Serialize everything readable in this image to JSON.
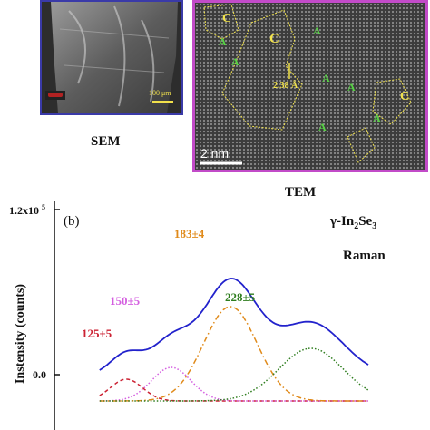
{
  "sem": {
    "caption": "SEM",
    "scale_label": "100 μm"
  },
  "tem": {
    "caption": "TEM",
    "scale_label": "2 nm",
    "d_spacing": "2.38 Å",
    "region_labels": [
      "C",
      "A",
      "C",
      "A",
      "A",
      "A",
      "A",
      "A",
      "C",
      "A"
    ]
  },
  "chart_data": {
    "type": "line",
    "panel_label": "(b)",
    "title": "γ-In2Se3",
    "subtitle": "Raman",
    "ylabel": "Instensity (counts)",
    "yticks": [
      "1.2x10^5",
      "0.0"
    ],
    "peaks": [
      {
        "label": "125±5",
        "color": "#cc2233",
        "center": 125
      },
      {
        "label": "150±5",
        "color": "#d45ee0",
        "center": 150
      },
      {
        "label": "183±4",
        "color": "#e08a1a",
        "center": 183
      },
      {
        "label": "228±5",
        "color": "#2e7d1e",
        "center": 228
      }
    ],
    "series": [
      {
        "name": "",
        "color": "#2222cc",
        "style": "solid"
      },
      {
        "name": "",
        "color": "#cc2233",
        "style": "dashed"
      },
      {
        "name": "",
        "color": "#d45ee0",
        "style": "dotted"
      },
      {
        "name": "",
        "color": "#e08a1a",
        "style": "dashdot"
      },
      {
        "name": "",
        "color": "#2e7d1e",
        "style": "dotted"
      }
    ]
  }
}
